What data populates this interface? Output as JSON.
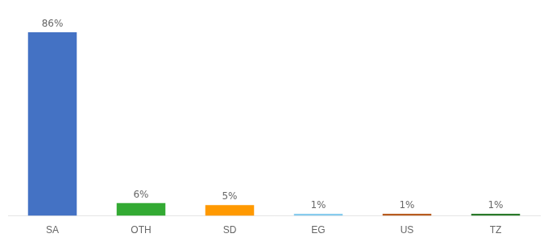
{
  "chart_data": {
    "type": "bar",
    "categories": [
      "SA",
      "OTH",
      "SD",
      "EG",
      "US",
      "TZ"
    ],
    "values": [
      86,
      6,
      5,
      1,
      1,
      1
    ],
    "value_labels": [
      "86%",
      "6%",
      "5%",
      "1%",
      "1%",
      "1%"
    ],
    "colors": [
      "#4472c4",
      "#33aa33",
      "#ff9900",
      "#88ccee",
      "#b85c20",
      "#2a7a2a"
    ],
    "ylim": [
      0,
      92
    ],
    "grid": false,
    "data_labels": true,
    "tick_labels": "x"
  }
}
